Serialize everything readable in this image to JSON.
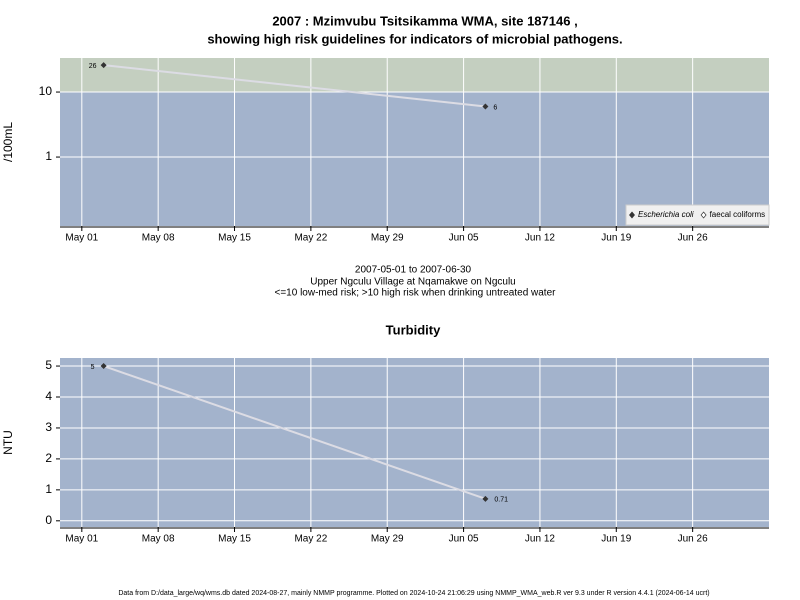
{
  "chart_data": [
    {
      "type": "line",
      "title": [
        "2007 : Mzimvubu Tsitsikamma WMA, site 187146 ,",
        "showing high risk guidelines for indicators of microbial pathogens."
      ],
      "ylabel": "/100mL",
      "log_y": true,
      "ylim": [
        0.087,
        33.4
      ],
      "yticks": [
        1,
        10
      ],
      "guideline": 10,
      "guideline_color": "#c4cfc0",
      "background": "#a3b3cc",
      "grid": true,
      "legend": "lower right",
      "xlim": [
        "2007-04-29",
        "2007-07-03"
      ],
      "xticks": [
        {
          "value": "2007-05-01",
          "label": "May 01"
        },
        {
          "value": "2007-05-08",
          "label": "May 08"
        },
        {
          "value": "2007-05-15",
          "label": "May 15"
        },
        {
          "value": "2007-05-22",
          "label": "May 22"
        },
        {
          "value": "2007-05-29",
          "label": "May 29"
        },
        {
          "value": "2007-06-05",
          "label": "Jun 05"
        },
        {
          "value": "2007-06-12",
          "label": "Jun 12"
        },
        {
          "value": "2007-06-19",
          "label": "Jun 19"
        },
        {
          "value": "2007-06-26",
          "label": "Jun 26"
        }
      ],
      "x": [
        "2007-05-03",
        "2007-06-07"
      ],
      "series": [
        {
          "name": "Escherichia coli",
          "color": "#333333",
          "values": [
            26,
            6
          ]
        },
        {
          "name": "faecal coliforms",
          "color": "#333333",
          "values": [
            null,
            null
          ]
        }
      ],
      "notes": [
        "2007-05-01 to 2007-06-30",
        "Upper Ngculu Village at Nqamakwe on Ngculu",
        "<=10 low-med risk; >10 high risk when drinking untreated water"
      ]
    },
    {
      "type": "line",
      "title": "Turbidity",
      "ylabel": "NTU",
      "log_y": false,
      "ylim": [
        -0.2,
        5.26
      ],
      "yticks": [
        0,
        1,
        2,
        3,
        4,
        5
      ],
      "background": "#a3b3cc",
      "grid": true,
      "xlim": [
        "2007-04-29",
        "2007-07-03"
      ],
      "xticks": [
        {
          "value": "2007-05-01",
          "label": "May 01"
        },
        {
          "value": "2007-05-08",
          "label": "May 08"
        },
        {
          "value": "2007-05-15",
          "label": "May 15"
        },
        {
          "value": "2007-05-22",
          "label": "May 22"
        },
        {
          "value": "2007-05-29",
          "label": "May 29"
        },
        {
          "value": "2007-06-05",
          "label": "Jun 05"
        },
        {
          "value": "2007-06-12",
          "label": "Jun 12"
        },
        {
          "value": "2007-06-19",
          "label": "Jun 19"
        },
        {
          "value": "2007-06-26",
          "label": "Jun 26"
        }
      ],
      "x": [
        "2007-05-03",
        "2007-06-07"
      ],
      "series": [
        {
          "name": "Turbidity",
          "color": "#333333",
          "values": [
            5,
            0.71
          ]
        }
      ]
    }
  ],
  "footer": "Data from D:/data_large/wq/wms.db dated 2024-08-27, mainly NMMP programme. Plotted on 2024-10-24 21:06:29 using NMMP_WMA_web.R ver 9.3 under R version 4.4.1 (2024-06-14 ucrt)"
}
